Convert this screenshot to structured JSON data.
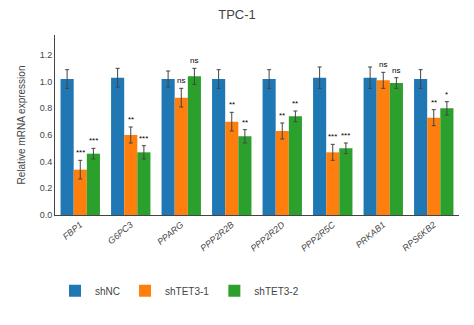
{
  "chart_data": {
    "type": "bar",
    "title": "TPC-1",
    "ylabel": "Relative mRNA expression",
    "categories": [
      "FBP1",
      "G6PC3",
      "PPARG",
      "PPP2R2B",
      "PPP2R2D",
      "PPP2R5C",
      "PRKAB1",
      "RPS6KB2"
    ],
    "series": [
      {
        "name": "shNC",
        "values": [
          1.02,
          1.03,
          1.02,
          1.02,
          1.02,
          1.03,
          1.03,
          1.02
        ],
        "errors": [
          0.07,
          0.07,
          0.06,
          0.07,
          0.07,
          0.08,
          0.08,
          0.07
        ]
      },
      {
        "name": "shTET3-1",
        "values": [
          0.34,
          0.6,
          0.88,
          0.7,
          0.63,
          0.47,
          1.01,
          0.73
        ],
        "errors": [
          0.07,
          0.06,
          0.07,
          0.07,
          0.06,
          0.06,
          0.06,
          0.06
        ],
        "significance": [
          "***",
          "**",
          "ns",
          "**",
          "**",
          "***",
          "ns",
          "**"
        ]
      },
      {
        "name": "shTET3-2",
        "values": [
          0.46,
          0.47,
          1.04,
          0.59,
          0.74,
          0.5,
          0.99,
          0.8
        ],
        "errors": [
          0.04,
          0.05,
          0.06,
          0.05,
          0.04,
          0.04,
          0.04,
          0.05
        ],
        "significance": [
          "***",
          "***",
          "ns",
          "**",
          "**",
          "***",
          "ns",
          "*"
        ]
      }
    ],
    "ylim": [
      0.0,
      1.35
    ],
    "yticks": [
      {
        "value": 0.0,
        "label": "0.0"
      },
      0.2,
      0.4,
      0.6,
      0.8,
      {
        "value": 1.0,
        "label": "1.0"
      },
      1.2
    ],
    "grid": false,
    "legend": "bottom"
  }
}
